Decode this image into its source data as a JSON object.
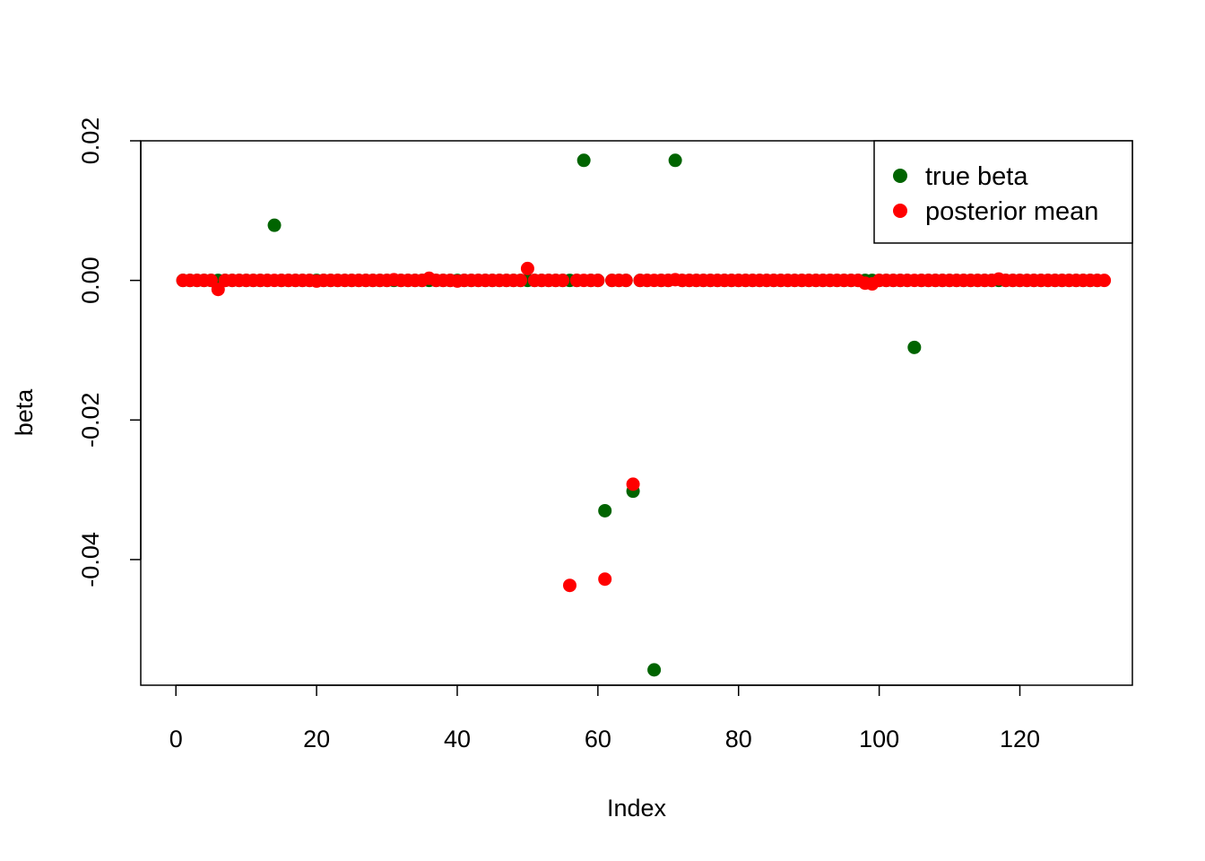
{
  "chart_data": {
    "type": "scatter",
    "title": "",
    "xlabel": "Index",
    "ylabel": "beta",
    "xlim": [
      -5,
      136
    ],
    "ylim": [
      -0.058,
      0.02
    ],
    "x_ticks": [
      0,
      20,
      40,
      60,
      80,
      100,
      120
    ],
    "x_tick_labels": [
      "0",
      "20",
      "40",
      "60",
      "80",
      "100",
      "120"
    ],
    "y_ticks": [
      -0.04,
      -0.02,
      0.0,
      0.02
    ],
    "y_tick_labels": [
      "-0.04",
      "-0.02",
      "0.00",
      "0.02"
    ],
    "grid": false,
    "legend_position": "top-right",
    "n_points": 132,
    "series": [
      {
        "name": "true beta",
        "color": "#006400",
        "values": [
          0,
          0,
          0,
          0,
          0,
          0,
          0,
          0,
          0,
          0,
          0,
          0,
          0,
          0.0079,
          0,
          0,
          0,
          0,
          0,
          0,
          0,
          0,
          0,
          0,
          0,
          0,
          0,
          0,
          0,
          0,
          0,
          0,
          0,
          0,
          0,
          0,
          0,
          0,
          0,
          0,
          0,
          0,
          0,
          0,
          0,
          0,
          0,
          0,
          0,
          0,
          0,
          0,
          0,
          0,
          0,
          0,
          0,
          0.0172,
          0,
          0,
          -0.033,
          0,
          0,
          0,
          -0.0302,
          0,
          0,
          -0.0558,
          0,
          0,
          0.0172,
          0,
          0,
          0,
          0,
          0,
          0,
          0,
          0,
          0,
          0,
          0,
          0,
          0,
          0,
          0,
          0,
          0,
          0,
          0,
          0,
          0,
          0,
          0,
          0,
          0,
          0,
          0,
          0,
          0,
          0,
          0,
          0,
          0,
          -0.0096,
          0,
          0,
          0,
          0,
          0,
          0,
          0,
          0,
          0,
          0,
          0,
          0,
          0,
          0,
          0,
          0,
          0,
          0,
          0,
          0,
          0,
          0,
          0,
          0,
          0,
          0
        ]
      },
      {
        "name": "posterior mean",
        "color": "#ff0000",
        "values": [
          0,
          0,
          0,
          0,
          0,
          -0.0013,
          0,
          0,
          0,
          0,
          0,
          0,
          0,
          0,
          0,
          0,
          0,
          0,
          0,
          -0.0001,
          0,
          0,
          0,
          0,
          0,
          0,
          0,
          0,
          0,
          0,
          0.0001,
          0,
          0,
          0,
          0,
          0.0003,
          0,
          0,
          0,
          -0.0001,
          0,
          0,
          0,
          0,
          0,
          0,
          0,
          0,
          0,
          0.0017,
          0,
          0,
          0,
          0,
          0,
          -0.0437,
          0,
          0,
          0,
          0,
          -0.0428,
          0,
          0,
          0,
          -0.0292,
          0,
          0,
          0,
          0,
          0,
          0.0001,
          0,
          0,
          0,
          0,
          0,
          0,
          0,
          0,
          0,
          0,
          0,
          0,
          0,
          0,
          0,
          0,
          0,
          0,
          0,
          0,
          0,
          0,
          0,
          0,
          0,
          0,
          -0.0004,
          -0.0005,
          0,
          0,
          0,
          0,
          0,
          0,
          0,
          0,
          0,
          0,
          0,
          0,
          0,
          0,
          0,
          0,
          0,
          0.0002,
          0,
          0,
          0,
          0,
          0,
          0,
          0,
          0,
          0,
          0,
          0,
          0,
          0,
          0,
          0
        ]
      }
    ]
  }
}
